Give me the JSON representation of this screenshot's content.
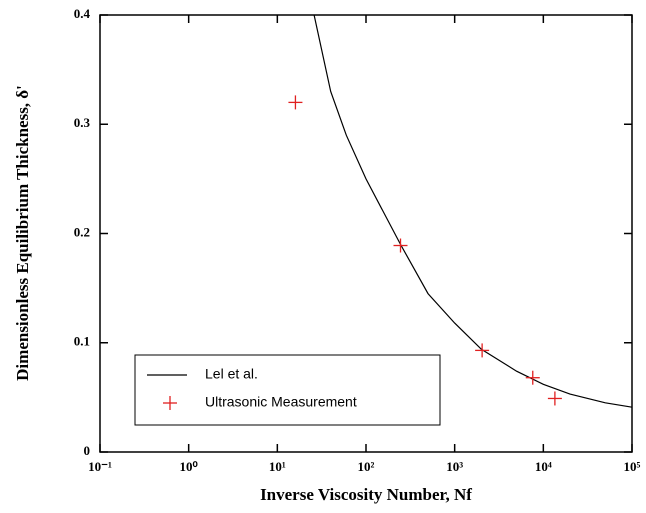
{
  "chart_data": {
    "type": "line",
    "xlabel": "Inverse Viscosity Number, Nf",
    "ylabel": "Dimensionless Equilibrium Thickness, δ'",
    "xscale": "log",
    "xlim": [
      0.1,
      100000
    ],
    "xticks": [
      {
        "value": 0.1,
        "label": "10⁻¹"
      },
      {
        "value": 1,
        "label": "10⁰"
      },
      {
        "value": 10,
        "label": "10¹"
      },
      {
        "value": 100,
        "label": "10²"
      },
      {
        "value": 1000,
        "label": "10³"
      },
      {
        "value": 10000,
        "label": "10⁴"
      },
      {
        "value": 100000,
        "label": "10⁵"
      }
    ],
    "ylim": [
      0,
      0.4
    ],
    "yticks": [
      0,
      0.1,
      0.2,
      0.3,
      0.4
    ],
    "legend": "lower left",
    "series": [
      {
        "name": "Lel et al.",
        "type": "line",
        "color": "#000000",
        "x": [
          26,
          40,
          60,
          100,
          245,
          500,
          1000,
          2000,
          5000,
          10000,
          20000,
          50000,
          100000
        ],
        "values": [
          0.4,
          0.33,
          0.29,
          0.25,
          0.19,
          0.145,
          0.118,
          0.094,
          0.074,
          0.062,
          0.053,
          0.045,
          0.041
        ]
      },
      {
        "name": "Ultrasonic Measurement",
        "type": "scatter",
        "color": "#e02020",
        "x": [
          16,
          245,
          2040,
          7600,
          13500
        ],
        "values": [
          0.32,
          0.189,
          0.093,
          0.068,
          0.049
        ]
      }
    ]
  }
}
